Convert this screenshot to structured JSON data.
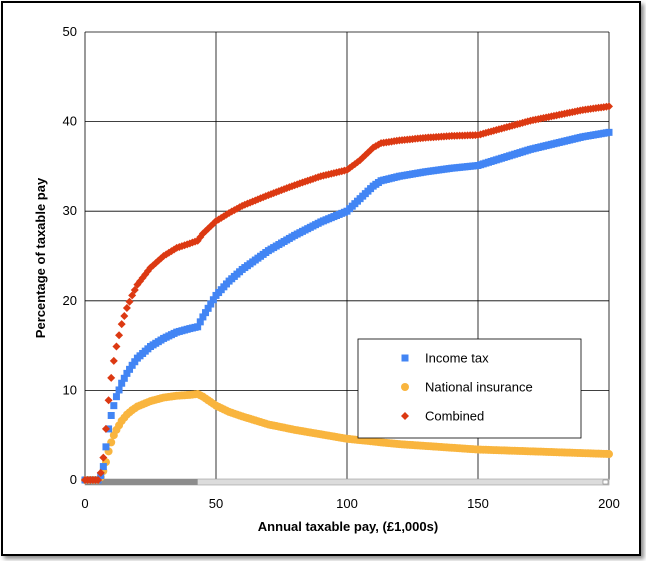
{
  "chart_data": {
    "type": "scatter",
    "title": "",
    "xlabel": "Annual taxable pay, (£1,000s)",
    "ylabel": "Percentage of taxable pay",
    "xlim": [
      0,
      200
    ],
    "ylim": [
      0,
      50
    ],
    "x_ticks": [
      "0",
      "50",
      "100",
      "150",
      "200"
    ],
    "y_ticks": [
      "0",
      "10",
      "20",
      "30",
      "40",
      "50"
    ],
    "grid": true,
    "legend_position": "bottom-right",
    "series": [
      {
        "name": "Income tax",
        "color": "#4285f4",
        "marker": "square",
        "points": [
          [
            0,
            0
          ],
          [
            5,
            0
          ],
          [
            6,
            0.5
          ],
          [
            7,
            1.5
          ],
          [
            8,
            3.7
          ],
          [
            9,
            5.7
          ],
          [
            10,
            7.2
          ],
          [
            11,
            8.3
          ],
          [
            12,
            9.3
          ],
          [
            14,
            10.8
          ],
          [
            16,
            11.9
          ],
          [
            18,
            12.8
          ],
          [
            20,
            13.6
          ],
          [
            25,
            14.9
          ],
          [
            30,
            15.8
          ],
          [
            35,
            16.5
          ],
          [
            40,
            16.9
          ],
          [
            43,
            17.1
          ],
          [
            45,
            18.2
          ],
          [
            50,
            20.6
          ],
          [
            55,
            22.2
          ],
          [
            60,
            23.5
          ],
          [
            70,
            25.6
          ],
          [
            80,
            27.3
          ],
          [
            90,
            28.8
          ],
          [
            100,
            30.0
          ],
          [
            105,
            31.4
          ],
          [
            110,
            32.8
          ],
          [
            113,
            33.4
          ],
          [
            120,
            33.9
          ],
          [
            130,
            34.4
          ],
          [
            140,
            34.8
          ],
          [
            150,
            35.1
          ],
          [
            160,
            36.0
          ],
          [
            170,
            36.9
          ],
          [
            180,
            37.6
          ],
          [
            190,
            38.3
          ],
          [
            200,
            38.8
          ]
        ]
      },
      {
        "name": "National insurance",
        "color": "#f9b53e",
        "marker": "circle",
        "points": [
          [
            0,
            0
          ],
          [
            5,
            0
          ],
          [
            6,
            0.3
          ],
          [
            7,
            1.0
          ],
          [
            8,
            2.0
          ],
          [
            9,
            3.2
          ],
          [
            10,
            4.2
          ],
          [
            11,
            5.0
          ],
          [
            12,
            5.6
          ],
          [
            14,
            6.6
          ],
          [
            16,
            7.3
          ],
          [
            18,
            7.8
          ],
          [
            20,
            8.2
          ],
          [
            25,
            8.8
          ],
          [
            30,
            9.2
          ],
          [
            35,
            9.4
          ],
          [
            40,
            9.5
          ],
          [
            43,
            9.6
          ],
          [
            45,
            9.3
          ],
          [
            50,
            8.3
          ],
          [
            55,
            7.6
          ],
          [
            60,
            7.1
          ],
          [
            70,
            6.2
          ],
          [
            80,
            5.6
          ],
          [
            90,
            5.1
          ],
          [
            100,
            4.6
          ],
          [
            110,
            4.3
          ],
          [
            113,
            4.2
          ],
          [
            120,
            4.0
          ],
          [
            130,
            3.8
          ],
          [
            140,
            3.6
          ],
          [
            150,
            3.4
          ],
          [
            160,
            3.3
          ],
          [
            170,
            3.2
          ],
          [
            180,
            3.1
          ],
          [
            190,
            3.0
          ],
          [
            200,
            2.9
          ]
        ]
      },
      {
        "name": "Combined",
        "color": "#dc3912",
        "marker": "diamond",
        "points": [
          [
            0,
            0
          ],
          [
            5,
            0
          ],
          [
            6,
            0.8
          ],
          [
            7,
            2.5
          ],
          [
            8,
            5.7
          ],
          [
            9,
            8.9
          ],
          [
            10,
            11.4
          ],
          [
            11,
            13.3
          ],
          [
            12,
            14.9
          ],
          [
            14,
            17.4
          ],
          [
            16,
            19.2
          ],
          [
            18,
            20.6
          ],
          [
            20,
            21.8
          ],
          [
            25,
            23.7
          ],
          [
            30,
            25.0
          ],
          [
            35,
            25.9
          ],
          [
            40,
            26.4
          ],
          [
            43,
            26.7
          ],
          [
            45,
            27.5
          ],
          [
            50,
            28.9
          ],
          [
            55,
            29.8
          ],
          [
            60,
            30.6
          ],
          [
            70,
            31.8
          ],
          [
            80,
            32.9
          ],
          [
            90,
            33.9
          ],
          [
            100,
            34.6
          ],
          [
            105,
            35.7
          ],
          [
            110,
            37.1
          ],
          [
            113,
            37.6
          ],
          [
            120,
            37.9
          ],
          [
            130,
            38.2
          ],
          [
            140,
            38.4
          ],
          [
            150,
            38.5
          ],
          [
            160,
            39.3
          ],
          [
            170,
            40.1
          ],
          [
            180,
            40.7
          ],
          [
            190,
            41.3
          ],
          [
            200,
            41.7
          ]
        ]
      }
    ]
  }
}
